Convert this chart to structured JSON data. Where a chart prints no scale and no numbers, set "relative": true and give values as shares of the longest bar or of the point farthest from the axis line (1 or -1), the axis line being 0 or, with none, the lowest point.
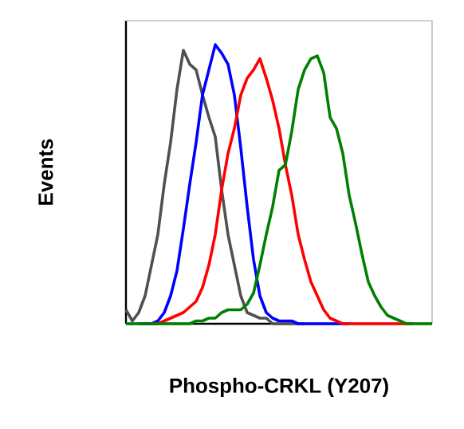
{
  "chart_data": {
    "type": "line",
    "relative": true,
    "xlabel": "Phospho-CRKL (Y207)",
    "ylabel": "Events",
    "marker": "none",
    "line_style": "solid",
    "categories": [
      null,
      null,
      null,
      null,
      null,
      null,
      null,
      null,
      null,
      null,
      null,
      null,
      null,
      null,
      null,
      null,
      null,
      null,
      null,
      null,
      null,
      null,
      null,
      null,
      null,
      null,
      null,
      null,
      null,
      null,
      null,
      null,
      null,
      null,
      null,
      null,
      null,
      null,
      null,
      null,
      null,
      null,
      null,
      null,
      null,
      null,
      null,
      null,
      null
    ],
    "series": [
      {
        "color": "#505050",
        "values": [
          0.05,
          0.01,
          0.04,
          0.1,
          0.21,
          0.32,
          0.5,
          0.65,
          0.84,
          0.98,
          0.93,
          0.91,
          0.82,
          0.74,
          0.67,
          0.48,
          0.32,
          0.21,
          0.1,
          0.04,
          0.03,
          0.02,
          0.02,
          0,
          0,
          0,
          0,
          0,
          0,
          null,
          null,
          null,
          null,
          null,
          null,
          null,
          null,
          null,
          null,
          null,
          null,
          null,
          null,
          null,
          null,
          null,
          null,
          null,
          null
        ]
      },
      {
        "color": "#0000ff",
        "values": [
          null,
          null,
          0,
          0,
          0,
          0.01,
          0.04,
          0.1,
          0.19,
          0.34,
          0.5,
          0.65,
          0.82,
          0.91,
          1.0,
          0.97,
          0.93,
          0.82,
          0.63,
          0.42,
          0.23,
          0.1,
          0.04,
          0.02,
          0.01,
          0.01,
          0.01,
          0,
          0,
          0,
          0,
          0,
          0,
          0,
          0,
          0,
          null,
          null,
          null,
          null,
          null,
          null,
          null,
          null,
          null,
          null,
          null,
          null,
          null
        ]
      },
      {
        "color": "#ff0000",
        "values": [
          null,
          null,
          null,
          null,
          0,
          0,
          0.01,
          0.02,
          0.03,
          0.04,
          0.06,
          0.08,
          0.13,
          0.21,
          0.32,
          0.48,
          0.61,
          0.7,
          0.82,
          0.88,
          0.91,
          0.95,
          0.88,
          0.8,
          0.7,
          0.57,
          0.46,
          0.32,
          0.23,
          0.15,
          0.1,
          0.05,
          0.02,
          0.01,
          0,
          0,
          0,
          0,
          0,
          0,
          0,
          0,
          0,
          0,
          0,
          0,
          null,
          null,
          null
        ]
      },
      {
        "color": "#008000",
        "values": [
          0,
          0,
          0,
          0,
          0,
          0,
          0,
          0,
          0,
          0,
          0,
          0.01,
          0.01,
          0.02,
          0.02,
          0.04,
          0.05,
          0.05,
          0.05,
          0.07,
          0.11,
          0.21,
          0.32,
          0.42,
          0.55,
          0.57,
          0.69,
          0.84,
          0.91,
          0.95,
          0.96,
          0.9,
          0.74,
          0.7,
          0.61,
          0.46,
          0.36,
          0.25,
          0.15,
          0.1,
          0.06,
          0.03,
          0.02,
          0.01,
          0,
          0,
          0,
          0,
          0
        ]
      }
    ]
  }
}
